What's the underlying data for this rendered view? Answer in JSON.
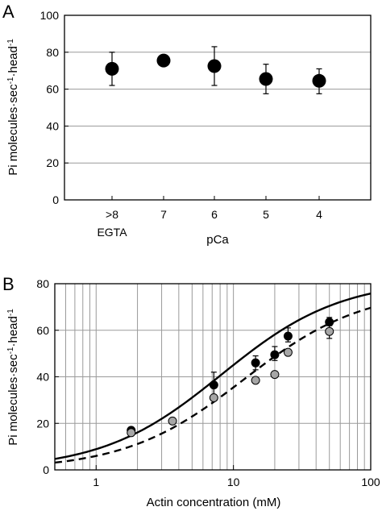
{
  "chart_data": [
    {
      "panel_label": "A",
      "type": "scatter",
      "xlabel": "pCa",
      "ylabel": "Pi molecules·sec⁻¹·head⁻¹",
      "categories": [
        ">8 EGTA",
        "7",
        "6",
        "5",
        "4"
      ],
      "category_lines": [
        [
          ">8",
          "EGTA"
        ],
        [
          "7"
        ],
        [
          "6"
        ],
        [
          "5"
        ],
        [
          "4"
        ]
      ],
      "ylim": [
        0,
        100
      ],
      "yticks": [
        0,
        20,
        40,
        60,
        80,
        100
      ],
      "grid": "horizontal",
      "series": [
        {
          "marker_color": "#000000",
          "values": [
            71,
            75.5,
            72.5,
            65.5,
            64.5
          ],
          "error_low": [
            62,
            null,
            62,
            57.5,
            57.5
          ],
          "error_high": [
            80,
            null,
            83,
            73.5,
            71
          ]
        }
      ]
    },
    {
      "panel_label": "B",
      "type": "scatter",
      "xlabel": "Actin concentration (mM)",
      "ylabel": "Pi molecules·sec⁻¹·head⁻¹",
      "xscale": "log",
      "xlim": [
        0.5,
        100
      ],
      "ylim": [
        0,
        80
      ],
      "xticks": [
        1,
        10,
        100
      ],
      "yticks": [
        0,
        20,
        40,
        60,
        80
      ],
      "grid": "both",
      "series": [
        {
          "marker_color": "#000000",
          "line_style": "solid",
          "x": [
            1.8,
            7.2,
            14.5,
            20,
            25,
            50
          ],
          "y": [
            17,
            36.5,
            46,
            49.5,
            57.5,
            63.5
          ],
          "error_low": [
            null,
            32,
            43,
            47,
            55,
            62
          ],
          "error_high": [
            null,
            42,
            49,
            53,
            61,
            65.5
          ],
          "fit": {
            "vmax": 82,
            "km": 8.2
          }
        },
        {
          "marker_color": "#a6a6a6",
          "line_style": "dashed",
          "x": [
            1.8,
            3.6,
            7.2,
            14.5,
            20,
            25,
            50
          ],
          "y": [
            16,
            21,
            31,
            38.5,
            41,
            50.5,
            59.5
          ],
          "error_low": [
            null,
            null,
            null,
            null,
            null,
            null,
            56.5
          ],
          "error_high": [
            null,
            null,
            null,
            null,
            null,
            null,
            62
          ],
          "fit": {
            "vmax": 78,
            "km": 12
          }
        }
      ]
    }
  ]
}
